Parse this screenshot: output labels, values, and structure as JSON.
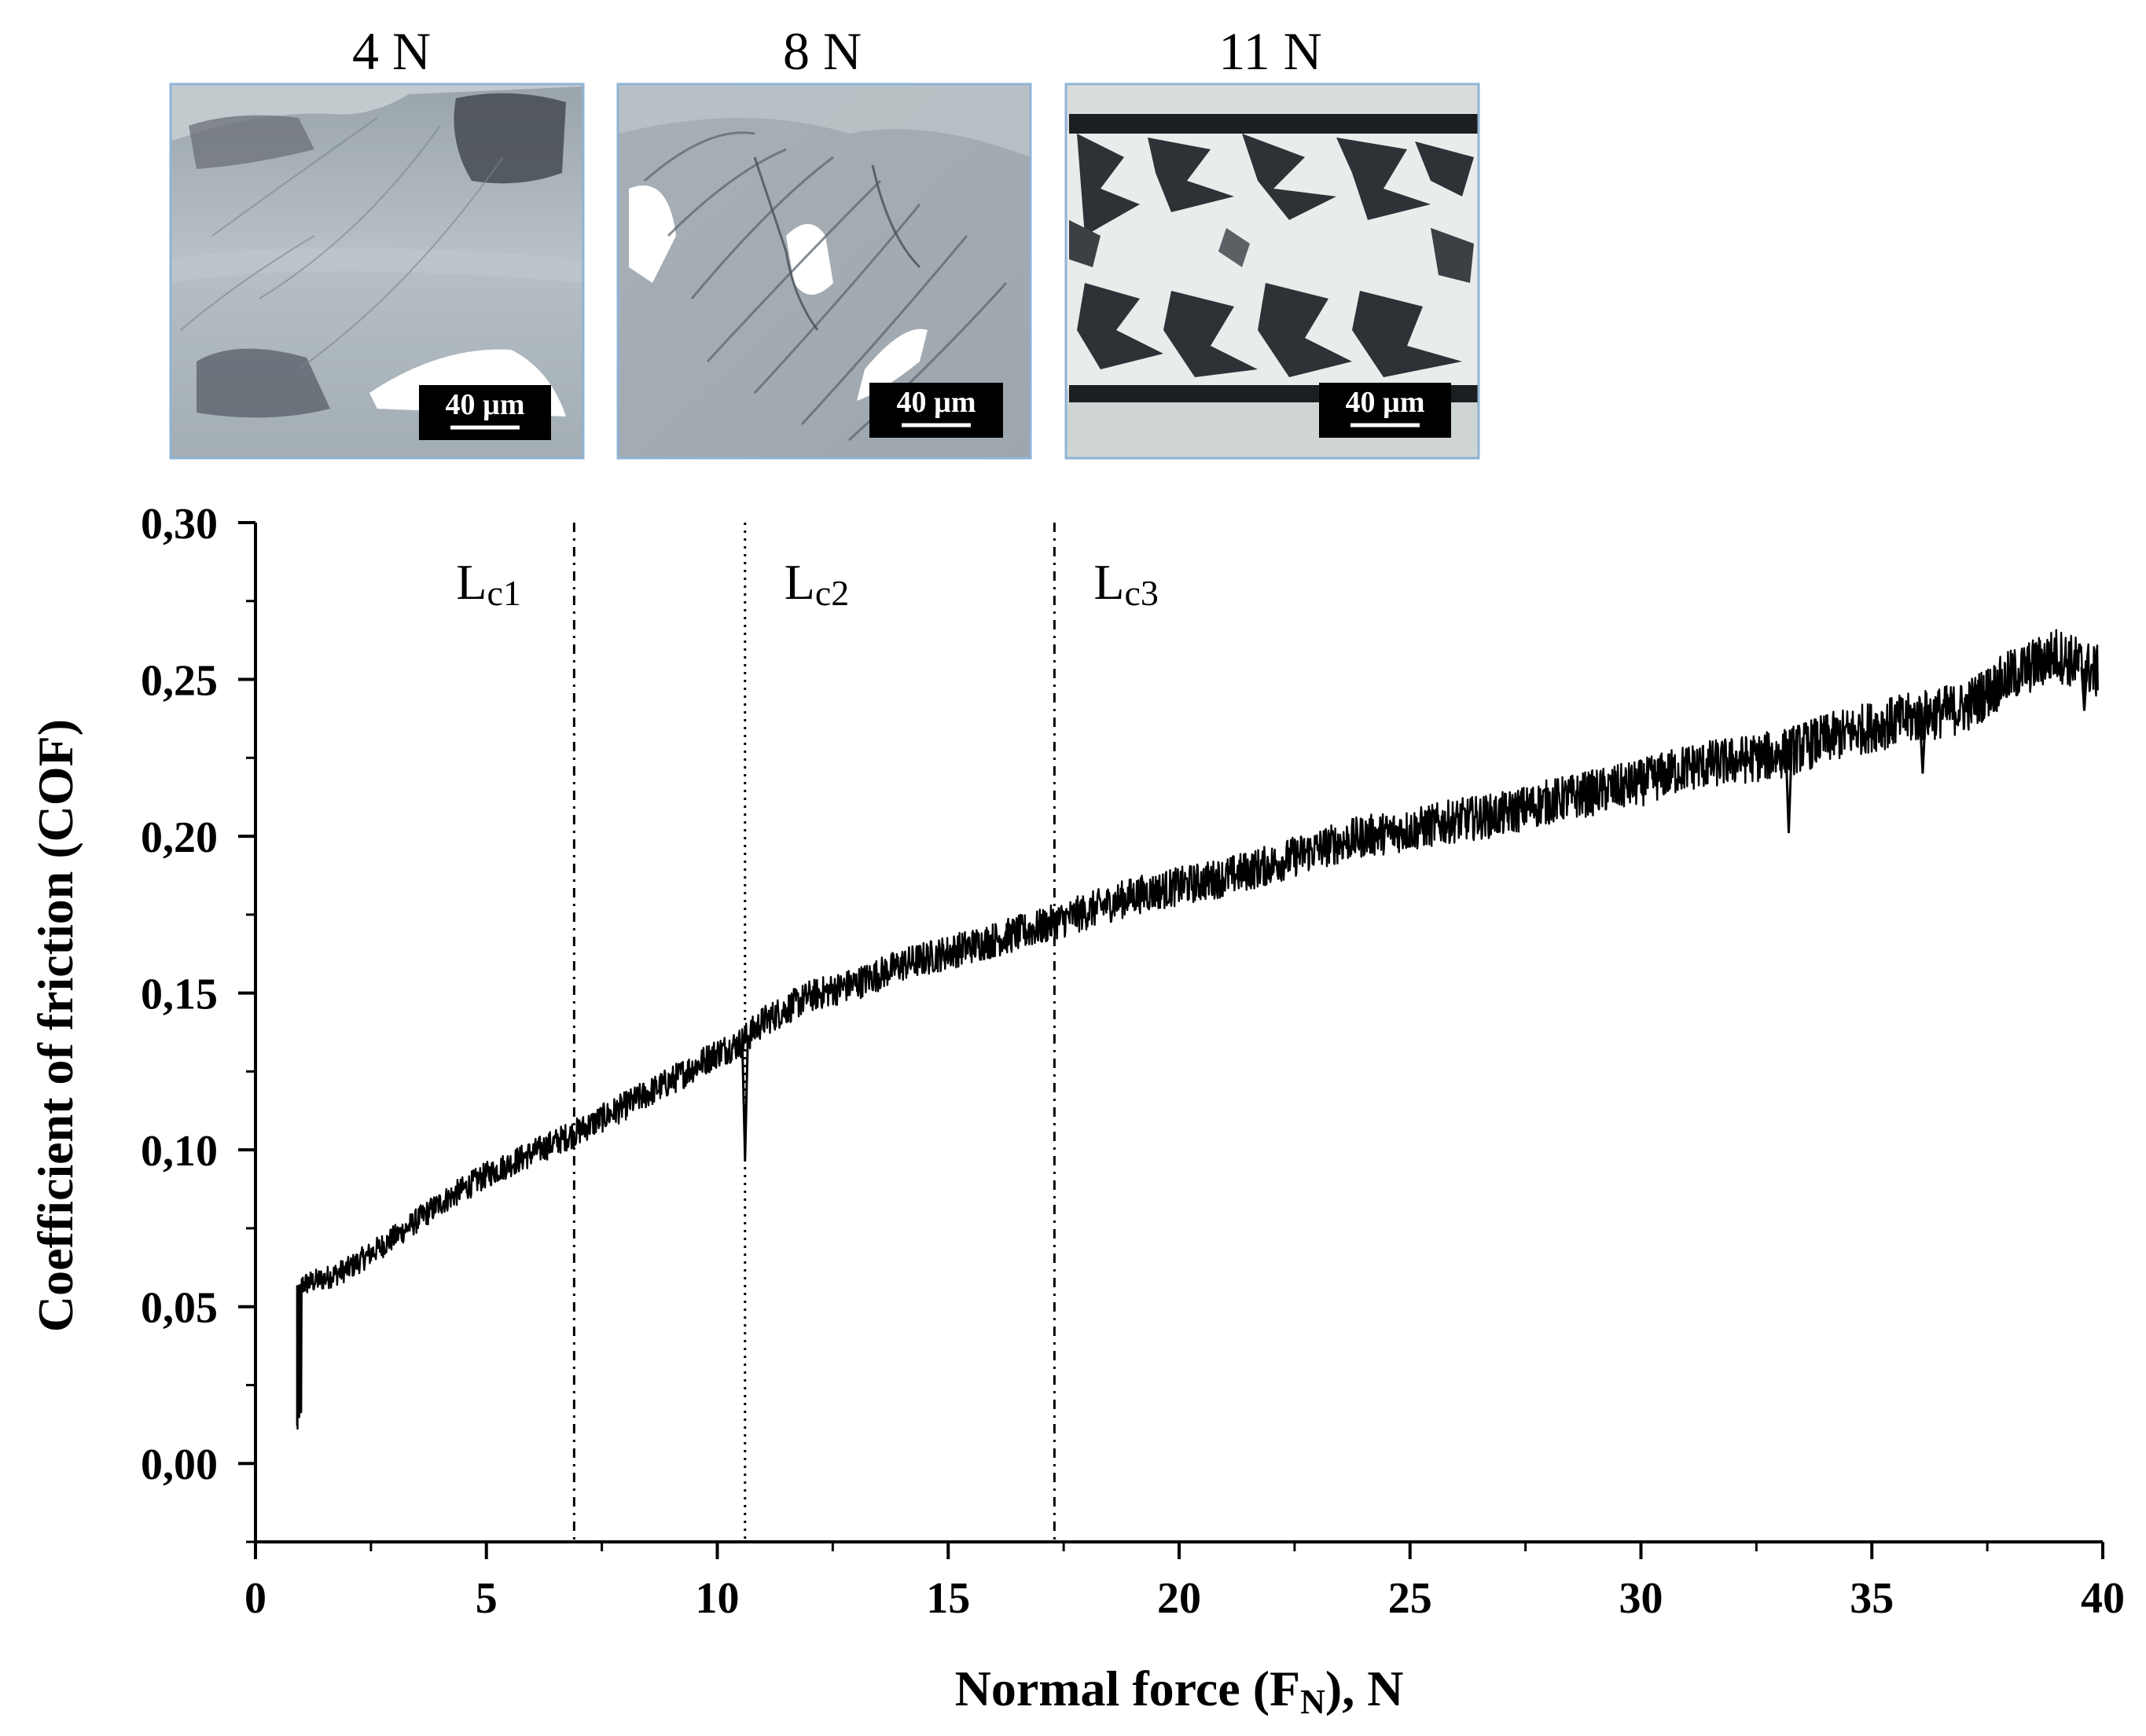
{
  "micrographs": [
    {
      "label": "4 N",
      "scale_bar": "40 µm",
      "panel": "4N"
    },
    {
      "label": "8 N",
      "scale_bar": "40 µm",
      "panel": "8N"
    },
    {
      "label": "11 N",
      "scale_bar": "40 µm",
      "panel": "11N"
    }
  ],
  "chart_data": {
    "type": "line",
    "title": "",
    "xlabel": "Normal force (F_N), N",
    "xlabel_main": "Normal force (F",
    "xlabel_sub": "N",
    "xlabel_tail": "), N",
    "ylabel": "Coefficient of friction (COF)",
    "xlim": [
      0,
      40
    ],
    "ylim": [
      -0.025,
      0.3
    ],
    "x_ticks": [
      0,
      5,
      10,
      15,
      20,
      25,
      30,
      35,
      40
    ],
    "x_tick_labels": [
      "0",
      "5",
      "10",
      "15",
      "20",
      "25",
      "30",
      "35",
      "40"
    ],
    "y_ticks": [
      0.0,
      0.05,
      0.1,
      0.15,
      0.2,
      0.25,
      0.3
    ],
    "y_tick_labels": [
      "0,00",
      "0,05",
      "0,10",
      "0,15",
      "0,20",
      "0,25",
      "0,30"
    ],
    "grid": false,
    "critical_loads": [
      {
        "name": "Lc1",
        "main": "L",
        "sub": "c1",
        "x": 6.9
      },
      {
        "name": "Lc2",
        "main": "L",
        "sub": "c2",
        "x": 10.6
      },
      {
        "name": "Lc3",
        "main": "L",
        "sub": "c3",
        "x": 17.3
      }
    ],
    "series": [
      {
        "name": "COF",
        "color": "#000000",
        "x": [
          0.9,
          1.0,
          1.5,
          2,
          3,
          4,
          5,
          6,
          7,
          8,
          9,
          10,
          10.5,
          11,
          12,
          13,
          14,
          15,
          16,
          17,
          18,
          19,
          20,
          21,
          22,
          23,
          24,
          25,
          26,
          27,
          28,
          29,
          30,
          31,
          32,
          33,
          34,
          35,
          36,
          37,
          38,
          39,
          39.9
        ],
        "y": [
          0.012,
          0.057,
          0.059,
          0.062,
          0.072,
          0.083,
          0.092,
          0.099,
          0.106,
          0.114,
          0.122,
          0.131,
          0.134,
          0.141,
          0.149,
          0.153,
          0.159,
          0.163,
          0.167,
          0.171,
          0.176,
          0.181,
          0.184,
          0.187,
          0.191,
          0.196,
          0.2,
          0.202,
          0.205,
          0.207,
          0.211,
          0.214,
          0.217,
          0.222,
          0.224,
          0.226,
          0.231,
          0.235,
          0.238,
          0.241,
          0.251,
          0.258,
          0.252
        ],
        "noise_amplitude": 0.004,
        "dip_events": [
          {
            "x": 10.6,
            "y": 0.097
          },
          {
            "x": 33.2,
            "y": 0.201
          },
          {
            "x": 36.1,
            "y": 0.22
          },
          {
            "x": 39.6,
            "y": 0.24
          }
        ]
      }
    ]
  }
}
